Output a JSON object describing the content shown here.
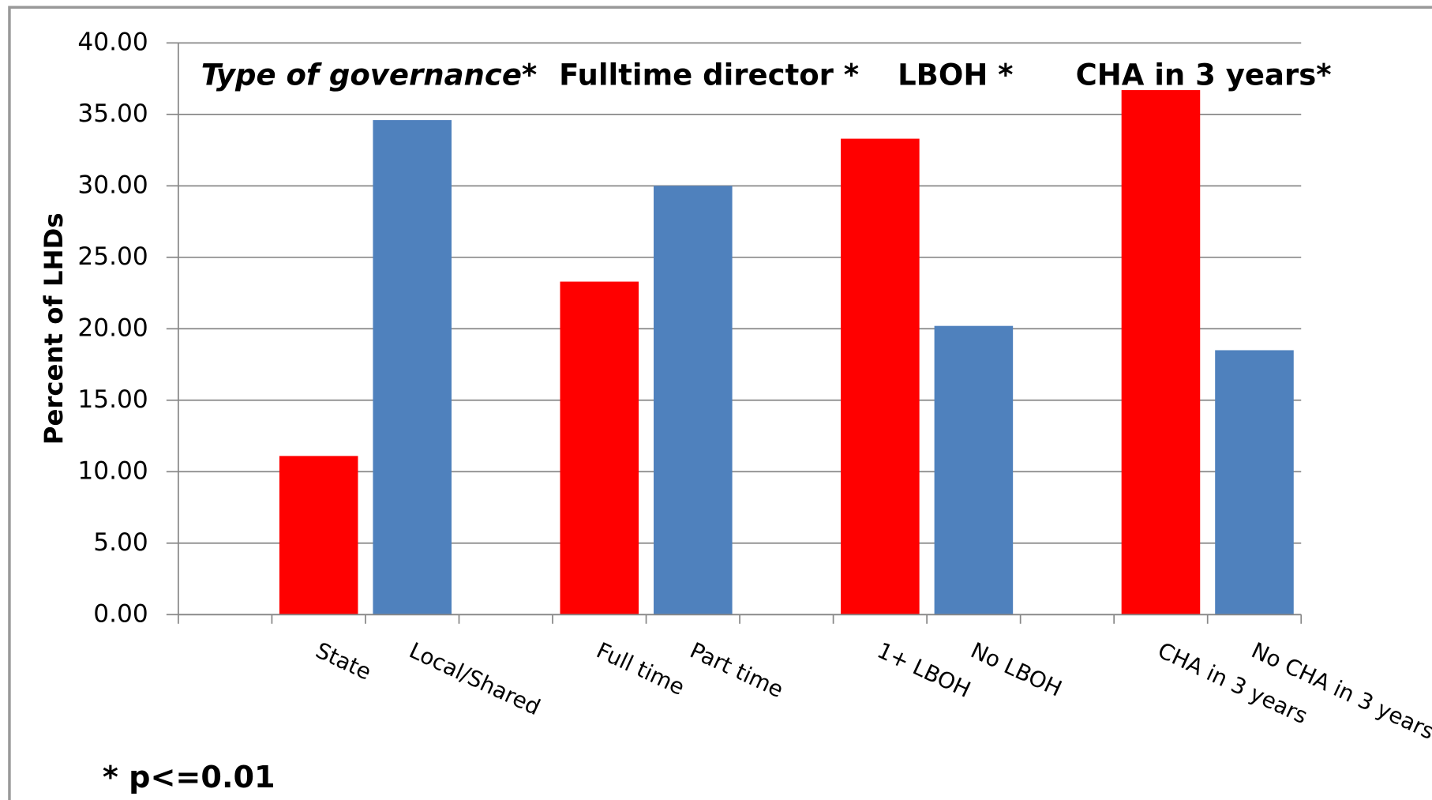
{
  "chart_data": {
    "type": "bar",
    "y_label": "Percent of LHDs",
    "categories": [
      null,
      "State",
      "Local/Shared",
      null,
      "Full time",
      "Part time",
      null,
      "1+ LBOH",
      "No LBOH",
      null,
      "CHA in 3 years",
      "No CHA in 3 years"
    ],
    "values": [
      null,
      11.1,
      34.6,
      null,
      23.3,
      30.0,
      null,
      33.3,
      20.2,
      null,
      36.7,
      18.5
    ],
    "colors": [
      null,
      "#ff0000",
      "#4f81bd",
      null,
      "#ff0000",
      "#4f81bd",
      null,
      "#ff0000",
      "#4f81bd",
      null,
      "#ff0000",
      "#4f81bd"
    ],
    "ylim": [
      0,
      40
    ],
    "yticks": [
      {
        "value": 0,
        "label": "0.00"
      },
      {
        "value": 5,
        "label": "5.00"
      },
      {
        "value": 10,
        "label": "10.00"
      },
      {
        "value": 15,
        "label": "15.00"
      },
      {
        "value": 20,
        "label": "20.00"
      },
      {
        "value": 25,
        "label": "25.00"
      },
      {
        "value": 30,
        "label": "30.00"
      },
      {
        "value": 35,
        "label": "35.00"
      },
      {
        "value": 40,
        "label": "40.00"
      }
    ],
    "grid": true,
    "annotations": [
      {
        "text": "Type of governance*",
        "italic": true
      },
      {
        "text": "Fulltime director *",
        "italic": false
      },
      {
        "text": "LBOH *",
        "italic": false
      },
      {
        "text": "CHA in 3 years*",
        "italic": false
      }
    ],
    "footnote": "* p<=0.01"
  }
}
